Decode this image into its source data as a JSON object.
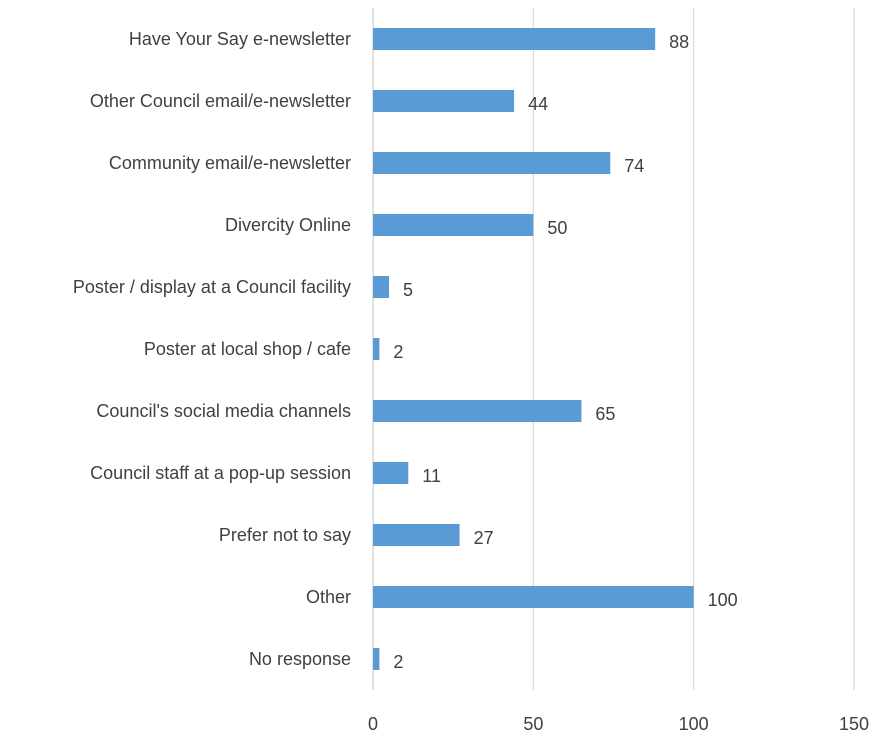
{
  "chart_data": {
    "type": "bar",
    "orientation": "horizontal",
    "title": "",
    "xlabel": "",
    "ylabel": "",
    "categories": [
      "Have Your Say e-newsletter",
      "Other Council email/e-newsletter",
      "Community email/e-newsletter",
      "Divercity Online",
      "Poster / display at a Council facility",
      "Poster at local shop / cafe",
      "Council's social media channels",
      "Council staff at a pop-up session",
      "Prefer not to say",
      "Other",
      "No response"
    ],
    "values": [
      88,
      44,
      74,
      50,
      5,
      2,
      65,
      11,
      27,
      100,
      2
    ],
    "xlim": [
      0,
      150
    ],
    "xticks": [
      0,
      50,
      100,
      150
    ],
    "grid": "vertical",
    "legend": "none",
    "bar_color": "#5B9BD5",
    "grid_color": "#D9D9D9",
    "text_color": "#404040"
  }
}
